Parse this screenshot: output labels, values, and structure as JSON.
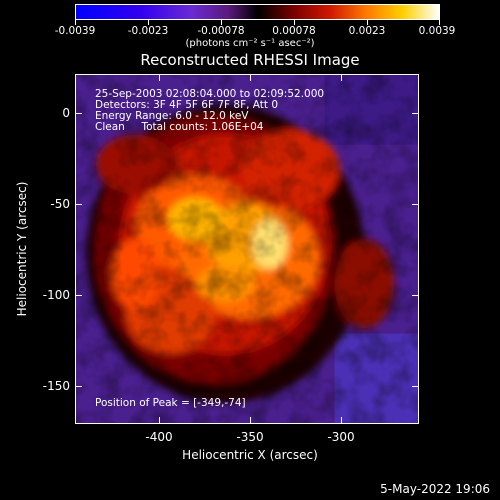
{
  "colorbar": {
    "ticks": [
      "-0.0039",
      "-0.0023",
      "-0.00078",
      "0.00078",
      "0.0023",
      "0.0039"
    ],
    "units_label": "(photons cm⁻² s⁻¹ asec⁻²)"
  },
  "title": "Reconstructed RHESSI Image",
  "info": {
    "line1": "25-Sep-2003 02:08:04.000 to 02:09:52.000",
    "line2": "Detectors: 3F 4F 5F 6F 7F 8F, Att 0",
    "line3": "Energy Range: 6.0 - 12.0 keV",
    "line4": "Clean     Total counts: 1.06E+04",
    "peak": "Position of Peak = [-349,-74]"
  },
  "chart_data": {
    "type": "heatmap",
    "xlabel": "Heliocentric X (arcsec)",
    "ylabel": "Heliocentric Y (arcsec)",
    "x_ticks": [
      "-400",
      "-350",
      "-300"
    ],
    "y_ticks": [
      "0",
      "-50",
      "-100",
      "-150"
    ],
    "xlim": [
      -447,
      -353
    ],
    "ylim": [
      -168,
      10
    ],
    "peak_position": [
      -349,
      -74
    ],
    "clim": [
      -0.0039,
      0.0039
    ]
  },
  "datestamp": "5-May-2022 19:06"
}
